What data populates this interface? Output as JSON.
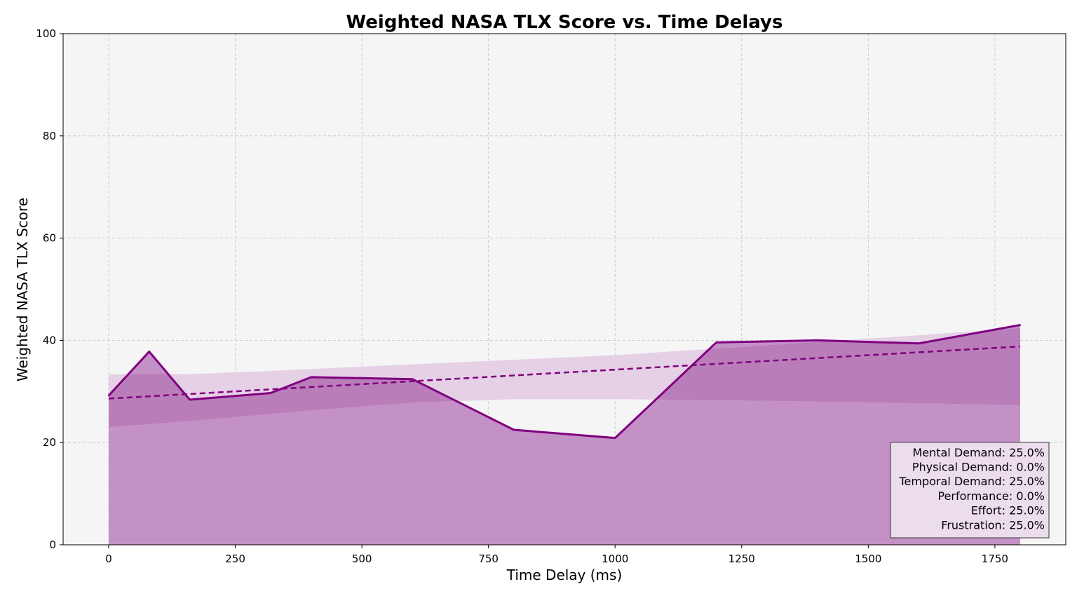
{
  "chart_data": {
    "type": "area",
    "title": "Weighted NASA TLX Score vs. Time Delays",
    "xlabel": "Time Delay (ms)",
    "ylabel": "Weighted NASA TLX Score",
    "xlim": [
      -90,
      1890
    ],
    "ylim": [
      0,
      100
    ],
    "x_ticks": [
      0,
      250,
      500,
      750,
      1000,
      1250,
      1500,
      1750
    ],
    "y_ticks": [
      0,
      20,
      40,
      60,
      80,
      100
    ],
    "grid": true,
    "colors": {
      "line": "#800080",
      "area_fill": "#c491c7",
      "band_fill": "#e5d0e6",
      "band_overlap": "#b97db9",
      "plot_background": "#f5f5f5",
      "legend_background": "#ecdded"
    },
    "series": [
      {
        "x": [
          0,
          80,
          160,
          320,
          400,
          600,
          800,
          1000,
          1200,
          1400,
          1600,
          1800
        ],
        "y": [
          29.2,
          37.8,
          28.4,
          29.7,
          32.8,
          32.4,
          22.5,
          20.9,
          39.6,
          40.0,
          39.4,
          43.0
        ]
      }
    ],
    "trend_line": {
      "x": [
        0,
        1800
      ],
      "y": [
        28.6,
        38.8
      ]
    },
    "confidence_band": {
      "x": [
        0,
        80,
        160,
        320,
        400,
        600,
        800,
        1000,
        1200,
        1400,
        1600,
        1800
      ],
      "lower": [
        23.0,
        23.6,
        24.2,
        25.6,
        26.3,
        27.8,
        28.5,
        28.5,
        28.3,
        28.0,
        27.7,
        27.3
      ],
      "upper": [
        33.3,
        33.5,
        33.4,
        34.0,
        34.4,
        35.3,
        36.2,
        37.1,
        38.4,
        39.7,
        41.0,
        42.4
      ]
    },
    "legend_position": "lower-right",
    "legend_entries": [
      "Mental Demand: 25.0%",
      "Physical Demand: 0.0%",
      "Temporal Demand: 25.0%",
      "Performance: 0.0%",
      "Effort: 25.0%",
      "Frustration: 25.0%"
    ]
  }
}
